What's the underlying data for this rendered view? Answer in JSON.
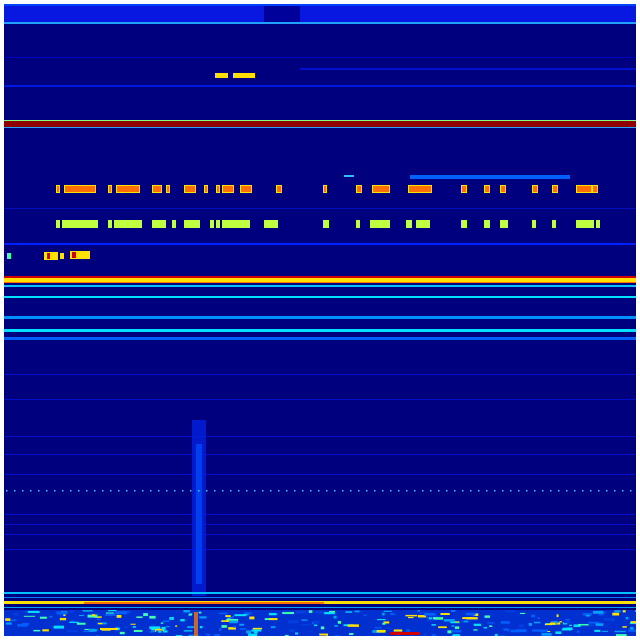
{
  "image": {
    "kind": "spectrogram-heatmap",
    "colormap": "jet",
    "colors": {
      "background": "#00007f",
      "low": "#0000c8",
      "mid_low": "#0060ff",
      "cyan": "#00e0ff",
      "green": "#80ff80",
      "yellow": "#ffe000",
      "orange": "#ff7000",
      "red": "#d00000",
      "dark_red": "#900000"
    }
  }
}
